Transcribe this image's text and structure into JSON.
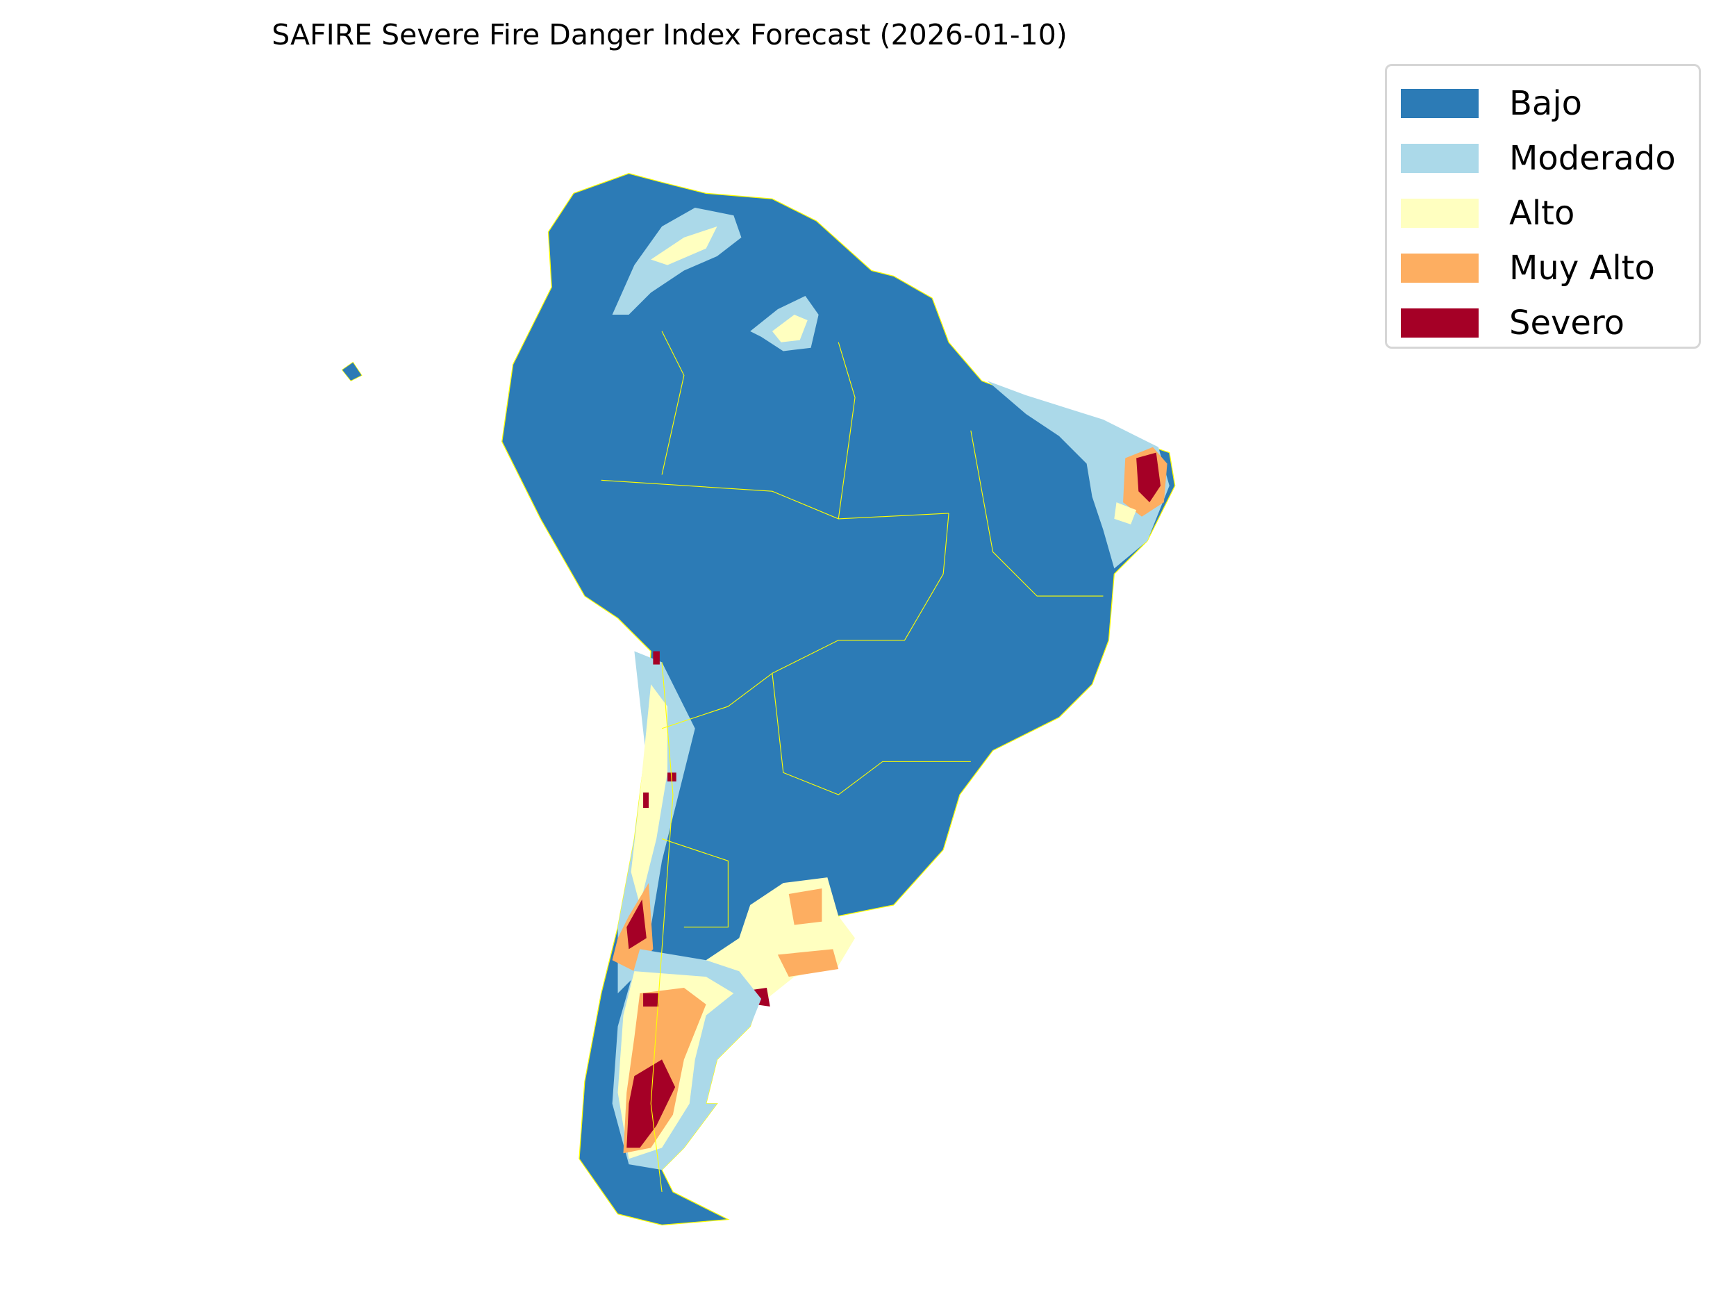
{
  "title": "SAFIRE Severe Fire Danger Index Forecast (2026-01-10)",
  "legend": {
    "placement": "top-right",
    "items": [
      {
        "label": "Bajo",
        "color": "#2c7bb6"
      },
      {
        "label": "Moderado",
        "color": "#abd9e9"
      },
      {
        "label": "Alto",
        "color": "#ffffc0"
      },
      {
        "label": "Muy Alto",
        "color": "#fdae61"
      },
      {
        "label": "Severo",
        "color": "#a50026"
      }
    ]
  },
  "map": {
    "region": "South America",
    "border_color": "#ffff00",
    "dominant_class": "Bajo",
    "high_danger_areas": [
      "Patagonia (Argentina)",
      "Central Chile",
      "Northeast Brazil",
      "Buenos Aires province"
    ]
  }
}
